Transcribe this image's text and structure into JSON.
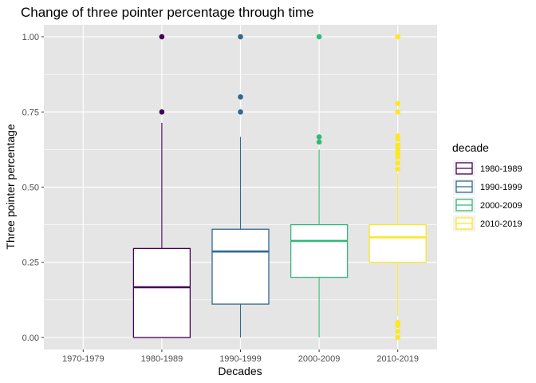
{
  "chart_data": {
    "type": "boxplot",
    "title": "Change of three pointer percentage through time",
    "xlabel": "Decades",
    "ylabel": "Three pointer percentage",
    "categories": [
      "1970-1979",
      "1980-1989",
      "1990-1999",
      "2000-2009",
      "2010-2019"
    ],
    "y_ticks": [
      0.0,
      0.25,
      0.5,
      0.75,
      1.0
    ],
    "y_tick_labels": [
      "0.00",
      "0.25",
      "0.50",
      "0.75",
      "1.00"
    ],
    "ylim": [
      -0.04,
      1.04
    ],
    "grid": true,
    "legend": {
      "title": "decade",
      "placement": "right",
      "entries": [
        "1980-1989",
        "1990-1999",
        "2000-2009",
        "2010-2019"
      ]
    },
    "boxes": [
      {
        "category": "1980-1989",
        "color": "#440154",
        "whisker_low": 0.0,
        "q1": 0.0,
        "median": 0.167,
        "q3": 0.296,
        "whisker_high": 0.714,
        "outliers": [
          0.75,
          1.0
        ]
      },
      {
        "category": "1990-1999",
        "color": "#31688e",
        "whisker_low": 0.0,
        "q1": 0.111,
        "median": 0.286,
        "q3": 0.36,
        "whisker_high": 0.667,
        "outliers": [
          0.75,
          0.8,
          1.0
        ]
      },
      {
        "category": "2000-2009",
        "color": "#35b779",
        "whisker_low": 0.0,
        "q1": 0.2,
        "median": 0.321,
        "q3": 0.375,
        "whisker_high": 0.625,
        "outliers": [
          0.65,
          0.667,
          1.0
        ]
      },
      {
        "category": "2010-2019",
        "color": "#fde725",
        "whisker_low": 0.071,
        "q1": 0.25,
        "median": 0.333,
        "q3": 0.375,
        "whisker_high": 0.545,
        "outliers": [
          0.0,
          0.02,
          0.04,
          0.05,
          0.56,
          0.58,
          0.6,
          0.61,
          0.62,
          0.63,
          0.64,
          0.66,
          0.67,
          0.75,
          0.778,
          1.0
        ]
      }
    ]
  },
  "colors": {
    "panel_background": "#e5e5e5",
    "grid": "#ffffff"
  }
}
